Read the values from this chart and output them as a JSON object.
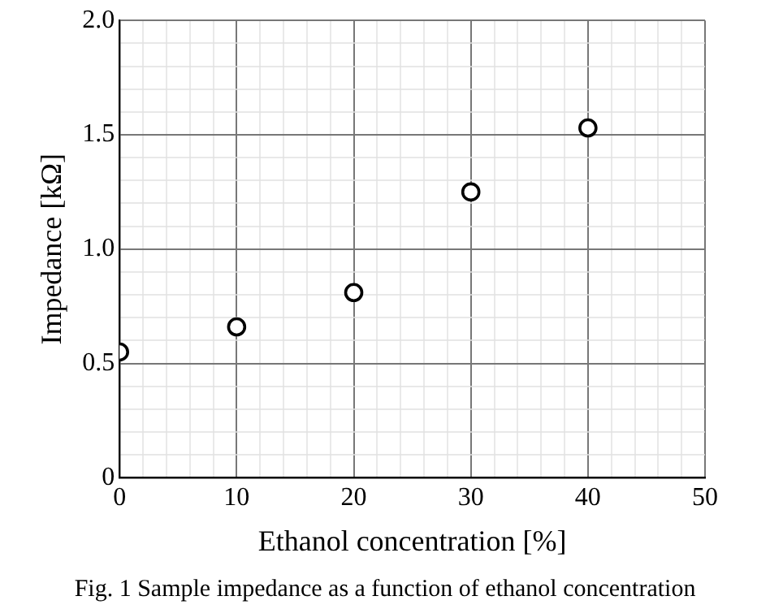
{
  "chart_data": {
    "type": "scatter",
    "xlabel": "Ethanol concentration [%]",
    "ylabel": "Impedance [kΩ]",
    "x": [
      0,
      10,
      20,
      30,
      40
    ],
    "series": [
      {
        "color": "#000000",
        "values": [
          0.55,
          0.66,
          0.81,
          1.25,
          1.53
        ]
      }
    ],
    "xlim": [
      0,
      50
    ],
    "xticks": [
      0,
      {
        "value": 2,
        "label": null
      },
      {
        "value": 4,
        "label": null
      },
      {
        "value": 6,
        "label": null
      },
      {
        "value": 8,
        "label": null
      },
      10,
      {
        "value": 12,
        "label": null
      },
      {
        "value": 14,
        "label": null
      },
      {
        "value": 16,
        "label": null
      },
      {
        "value": 18,
        "label": null
      },
      20,
      {
        "value": 22,
        "label": null
      },
      {
        "value": 24,
        "label": null
      },
      {
        "value": 26,
        "label": null
      },
      {
        "value": 28,
        "label": null
      },
      30,
      {
        "value": 32,
        "label": null
      },
      {
        "value": 34,
        "label": null
      },
      {
        "value": 36,
        "label": null
      },
      {
        "value": 38,
        "label": null
      },
      40,
      {
        "value": 42,
        "label": null
      },
      {
        "value": 44,
        "label": null
      },
      {
        "value": 46,
        "label": null
      },
      {
        "value": 48,
        "label": null
      },
      50
    ],
    "ylim": [
      0,
      2
    ],
    "yticks": [
      0,
      {
        "value": 0.1,
        "label": null
      },
      {
        "value": 0.2,
        "label": null
      },
      {
        "value": 0.3,
        "label": null
      },
      {
        "value": 0.4,
        "label": null
      },
      {
        "value": 0.5,
        "label": "0.5"
      },
      {
        "value": 0.6,
        "label": null
      },
      {
        "value": 0.7,
        "label": null
      },
      {
        "value": 0.8,
        "label": null
      },
      {
        "value": 0.9,
        "label": null
      },
      {
        "value": 1,
        "label": "1.0"
      },
      {
        "value": 1.1,
        "label": null
      },
      {
        "value": 1.2,
        "label": null
      },
      {
        "value": 1.3,
        "label": null
      },
      {
        "value": 1.4,
        "label": null
      },
      {
        "value": 1.5,
        "label": "1.5"
      },
      {
        "value": 1.6,
        "label": null
      },
      {
        "value": 1.7,
        "label": null
      },
      {
        "value": 1.8,
        "label": null
      },
      {
        "value": 1.9,
        "label": null
      },
      {
        "value": 2,
        "label": "2.0"
      }
    ],
    "grid": true,
    "marker": "circle",
    "legend": false,
    "annotations": [
      "Fig. 1 Sample impedance as a function of ethanol concentration"
    ]
  }
}
